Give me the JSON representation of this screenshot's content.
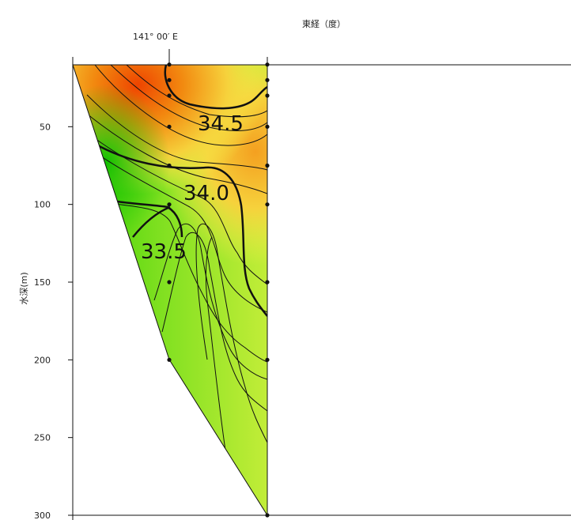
{
  "chart_data": {
    "type": "contour section",
    "x_axis": {
      "title": "東経（度）",
      "tick_labels": [
        "141° 00′ E"
      ]
    },
    "y_axis": {
      "title": "水深(m)",
      "ylim": [
        0,
        300
      ],
      "inverted": true,
      "ticks": [
        50,
        100,
        150,
        200,
        250,
        300
      ]
    },
    "contour_labels": [
      {
        "text": "34.5",
        "value": 34.5
      },
      {
        "text": "34.0",
        "value": 34.0
      },
      {
        "text": "33.5",
        "value": 33.5
      }
    ],
    "stations": [
      {
        "depths": [
          0,
          10,
          20,
          30,
          50,
          75,
          100,
          150
        ]
      },
      {
        "depths": [
          0,
          10,
          20,
          30,
          50,
          75,
          100,
          150,
          200
        ]
      },
      {
        "depths": [
          0,
          10,
          20,
          30,
          50,
          75,
          100,
          150,
          200,
          300
        ]
      }
    ],
    "colors": {
      "low": "#22cc00",
      "mid": "#f6f04a",
      "high": "#ee4400"
    }
  }
}
